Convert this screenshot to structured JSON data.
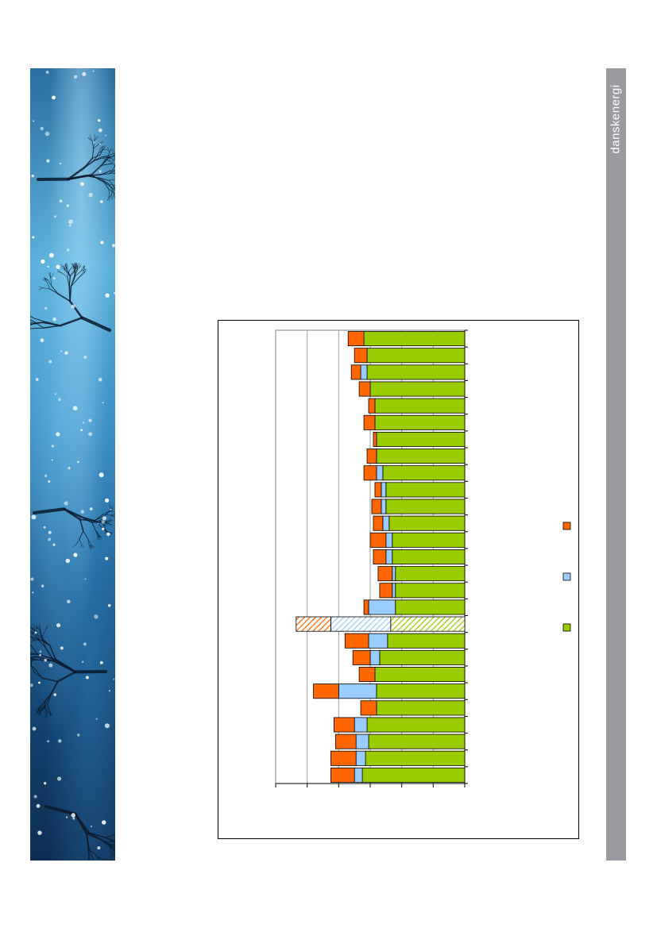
{
  "brand": {
    "name": "danskenergi"
  },
  "photo": {
    "icon": "night-tree-branches-image"
  },
  "colors": {
    "green": "#99cc00",
    "blue": "#99ccff",
    "orange": "#ff6600",
    "band": "#9b9aa0"
  },
  "chart_data": {
    "type": "bar",
    "orientation": "rotated-90",
    "stacked": true,
    "ylim": [
      0,
      60
    ],
    "grid": true,
    "legend_position": "bottom",
    "series": [
      {
        "color": "#99cc00",
        "values": [
          32,
          31,
          31,
          30,
          28.5,
          28.5,
          28,
          28,
          26,
          25,
          25,
          24,
          23,
          23,
          22,
          22,
          22,
          23.5,
          24.5,
          27,
          28.5,
          28,
          28,
          31,
          30.5,
          31.5,
          32.5
        ]
      },
      {
        "color": "#99ccff",
        "values": [
          0,
          0,
          2,
          0,
          0,
          0,
          0,
          0,
          2,
          1.5,
          1.5,
          2,
          2,
          2,
          1,
          1,
          8.5,
          19,
          6,
          3,
          0,
          12,
          0,
          4,
          4,
          3,
          2.5
        ]
      },
      {
        "color": "#ff6600",
        "values": [
          5,
          4,
          3,
          3.5,
          2,
          3.5,
          1,
          3,
          4,
          2,
          3,
          3,
          5,
          4,
          4.5,
          4,
          1.5,
          11,
          7.5,
          5.5,
          5,
          8,
          5,
          6.5,
          6.5,
          8,
          7.5
        ]
      }
    ],
    "hatched_index": 17
  }
}
